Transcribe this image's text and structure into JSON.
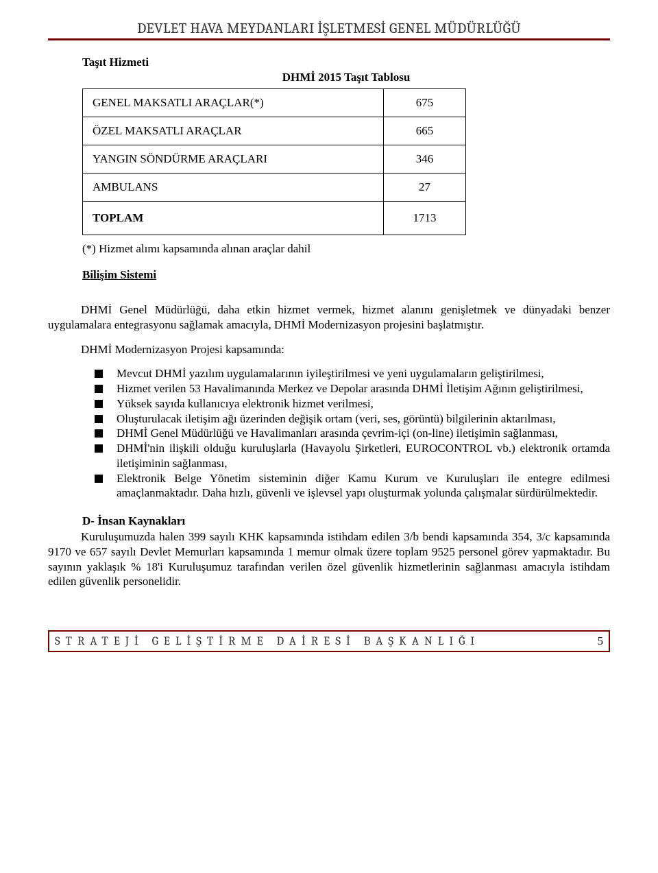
{
  "page_header": "DEVLET HAVA MEYDANLARI İŞLETMESİ GENEL MÜDÜRLÜĞÜ",
  "tasit": {
    "label": "Taşıt Hizmeti",
    "table_title": "DHMİ 2015 Taşıt Tablosu",
    "rows": [
      {
        "label": "GENEL MAKSATLI ARAÇLAR(*)",
        "value": "675"
      },
      {
        "label": "ÖZEL MAKSATLI ARAÇLAR",
        "value": "665"
      },
      {
        "label": "YANGIN SÖNDÜRME ARAÇLARI",
        "value": "346"
      },
      {
        "label": "AMBULANS",
        "value": "27"
      }
    ],
    "total": {
      "label": "TOPLAM",
      "value": "1713"
    },
    "footnote": "(*) Hizmet alımı kapsamında alınan araçlar dahil"
  },
  "bilisim": {
    "title": "Bilişim Sistemi",
    "intro": "DHMİ Genel Müdürlüğü, daha etkin hizmet vermek, hizmet alanını genişletmek ve dünyadaki benzer uygulamalara entegrasyonu sağlamak amacıyla, DHMİ Modernizasyon projesini başlatmıştır.",
    "subintro": "DHMİ Modernizasyon Projesi kapsamında:",
    "bullets": [
      "Mevcut DHMİ yazılım uygulamalarının iyileştirilmesi ve yeni uygulamaların geliştirilmesi,",
      "Hizmet verilen 53 Havalimanında Merkez ve Depolar arasında DHMİ İletişim Ağının geliştirilmesi,",
      "Yüksek sayıda kullanıcıya elektronik hizmet verilmesi,",
      "Oluşturulacak iletişim ağı üzerinden değişik ortam (veri, ses, görüntü) bilgilerinin aktarılması,",
      "DHMİ Genel Müdürlüğü ve Havalimanları arasında çevrim-içi (on-line) iletişimin sağlanması,",
      "DHMİ'nin ilişkili olduğu kuruluşlarla (Havayolu Şirketleri, EUROCONTROL vb.) elektronik ortamda iletişiminin sağlanması,",
      "Elektronik Belge Yönetim sisteminin diğer Kamu Kurum ve Kuruluşları ile entegre edilmesi amaçlanmaktadır. Daha hızlı, güvenli ve işlevsel yapı oluşturmak yolunda çalışmalar sürdürülmektedir."
    ]
  },
  "section_d": {
    "title": "D- İnsan Kaynakları",
    "text": "Kuruluşumuzda halen 399 sayılı KHK kapsamında istihdam edilen 3/b bendi kapsamında 354, 3/c kapsamında 9170 ve 657 sayılı Devlet Memurları kapsamında 1 memur olmak üzere toplam 9525 personel görev yapmaktadır. Bu sayının yaklaşık % 18'i Kuruluşumuz tarafından verilen özel güvenlik hizmetlerinin sağlanması amacıyla istihdam edilen güvenlik personelidir."
  },
  "footer": {
    "text": "STRATEJİ GELİŞTİRME DAİRESİ BAŞKANLIĞI",
    "page": "5"
  },
  "colors": {
    "accent": "#7a0000",
    "text_gray": "#333333"
  }
}
